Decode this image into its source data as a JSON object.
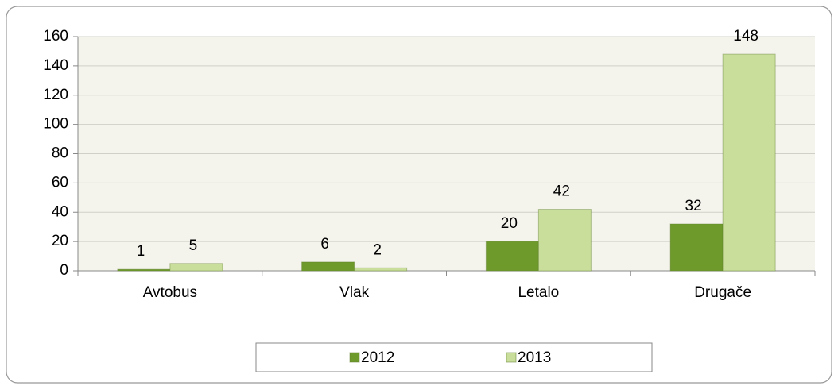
{
  "chart_data": {
    "type": "bar",
    "categories": [
      "Avtobus",
      "Vlak",
      "Letalo",
      "Drugače"
    ],
    "series": [
      {
        "name": "2012",
        "color": "#6e9a2c",
        "values": [
          1,
          6,
          20,
          32
        ]
      },
      {
        "name": "2013",
        "color": "#c9de9a",
        "values": [
          5,
          2,
          42,
          148
        ]
      }
    ],
    "ylim": [
      0,
      160
    ],
    "yticks": [
      0,
      20,
      40,
      60,
      80,
      100,
      120,
      140,
      160
    ],
    "grid": true,
    "legend": "bottom"
  }
}
